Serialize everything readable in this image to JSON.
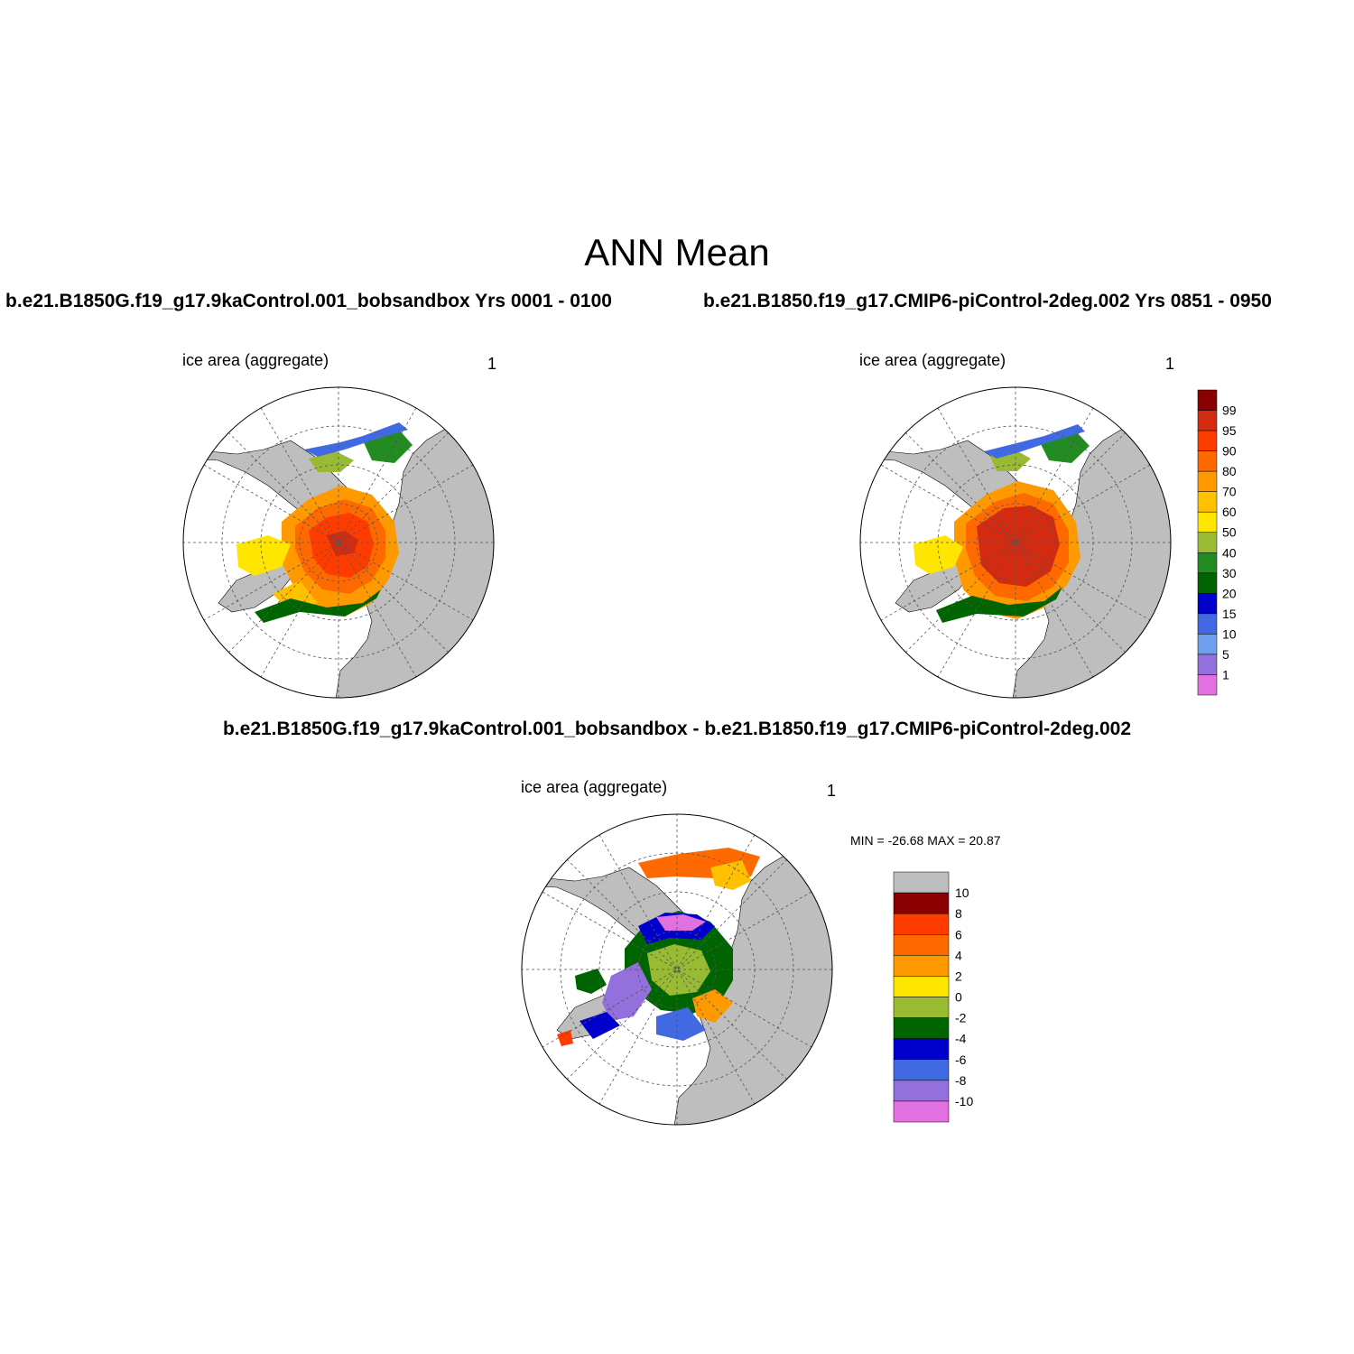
{
  "page": {
    "title": "ANN Mean"
  },
  "panels": [
    {
      "case_title": "b.e21.B1850G.f19_g17.9kaControl.001_bobsandbox  Yrs 0001 - 0100",
      "left_label": "ice area  (aggregate)",
      "right_label": "1"
    },
    {
      "case_title": "b.e21.B1850.f19_g17.CMIP6-piControl-2deg.002  Yrs 0851 - 0950",
      "left_label": "ice area  (aggregate)",
      "right_label": "1"
    },
    {
      "case_title": "b.e21.B1850G.f19_g17.9kaControl.001_bobsandbox - b.e21.B1850.f19_g17.CMIP6-piControl-2deg.002",
      "left_label": "ice area  (aggregate)",
      "right_label": "1",
      "minmax_text": "MIN = -26.68 MAX =  20.87"
    }
  ],
  "colorbar_main": {
    "labels": [
      "99",
      "95",
      "90",
      "80",
      "70",
      "60",
      "50",
      "40",
      "30",
      "20",
      "15",
      "10",
      "5",
      "1"
    ],
    "colors": [
      "#8b0000",
      "#d42a10",
      "#ff3c00",
      "#ff6a00",
      "#ff9900",
      "#ffc000",
      "#ffe600",
      "#99bb33",
      "#228b22",
      "#006400",
      "#0000cd",
      "#4169e1",
      "#6fa0f0",
      "#9370db",
      "#e170e1"
    ]
  },
  "colorbar_diff": {
    "labels": [
      "10",
      "8",
      "6",
      "4",
      "2",
      "0",
      "-2",
      "-4",
      "-6",
      "-8",
      "-10"
    ],
    "colors": [
      "#bebebe",
      "#8b0000",
      "#ff3c00",
      "#ff6a00",
      "#ff9900",
      "#ffe600",
      "#99bb33",
      "#006400",
      "#0000cd",
      "#4169e1",
      "#9370db",
      "#e170e1"
    ]
  },
  "map_colors": {
    "land": "#bebebe",
    "ocean": "#ffffff"
  }
}
